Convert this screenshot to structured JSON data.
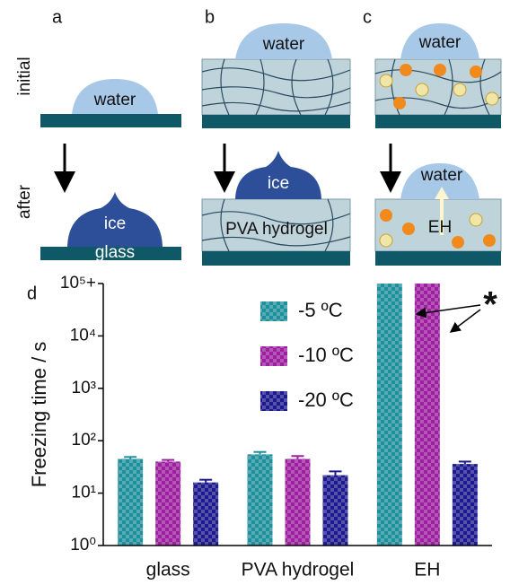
{
  "diagram": {
    "panel_labels": [
      "a",
      "b",
      "c"
    ],
    "row_labels": [
      "initial",
      "after"
    ],
    "panel_a": {
      "initial": [
        "water"
      ],
      "after": [
        "ice",
        "glass"
      ]
    },
    "panel_b": {
      "initial": [
        "water"
      ],
      "after": [
        "ice",
        "PVA hydrogel"
      ]
    },
    "panel_c": {
      "initial": [
        "water"
      ],
      "after": [
        "water",
        "EH"
      ]
    }
  },
  "chart_data": {
    "type": "bar",
    "panel_label": "d",
    "ylabel": "Freezing time / s",
    "yscale": "log",
    "categories": [
      "glass",
      "PVA hydrogel",
      "EH"
    ],
    "series": [
      {
        "name": "-5 ºC",
        "color": "#1f8f9c",
        "values": [
          45,
          55,
          100000
        ],
        "errors": [
          4,
          6,
          null
        ]
      },
      {
        "name": "-10 ºC",
        "color": "#9c1f9f",
        "values": [
          40,
          45,
          100000
        ],
        "errors": [
          3,
          6,
          null
        ]
      },
      {
        "name": "-20 ºC",
        "color": "#1c1a8c",
        "values": [
          16,
          22,
          36
        ],
        "errors": [
          2,
          4,
          4
        ]
      }
    ],
    "ylim": [
      1,
      100000
    ],
    "yticks": [
      {
        "value": 1,
        "label": "10⁰"
      },
      {
        "value": 10,
        "label": "10¹"
      },
      {
        "value": 100,
        "label": "10²"
      },
      {
        "value": 1000,
        "label": "10³"
      },
      {
        "value": 10000,
        "label": "10⁴"
      },
      {
        "value": 100000,
        "label": "10⁵+"
      }
    ],
    "annotation": "*",
    "legend": "upper center"
  }
}
